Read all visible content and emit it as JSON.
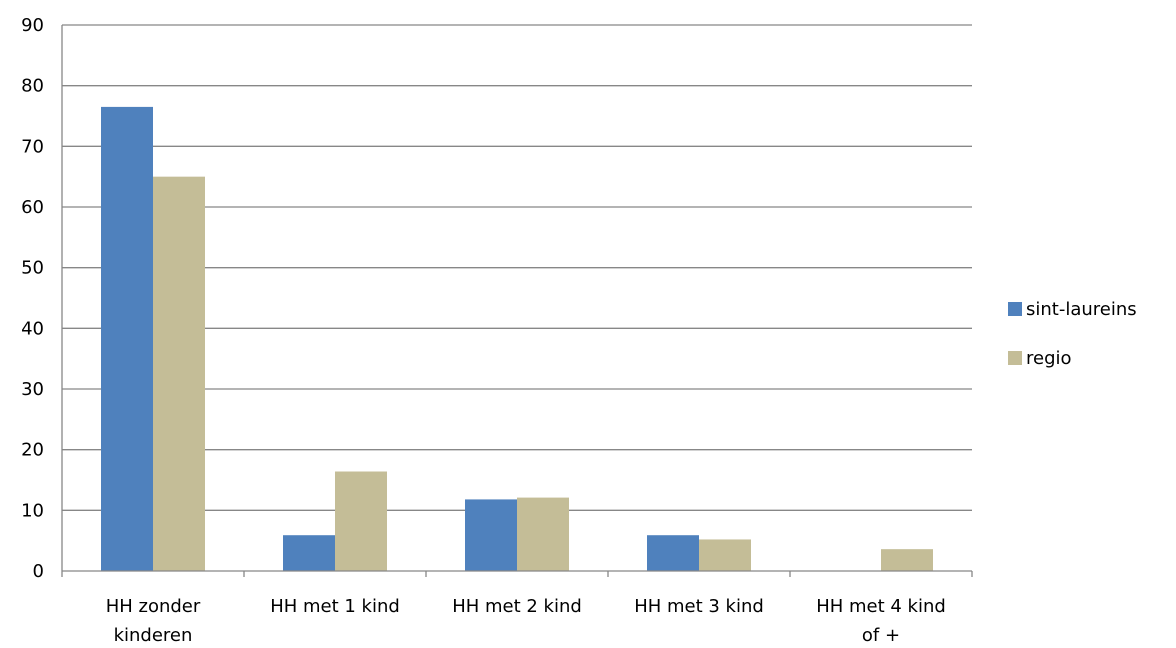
{
  "chart_data": {
    "type": "bar",
    "title": "",
    "xlabel": "",
    "ylabel": "",
    "categories": [
      [
        "HH zonder",
        "kinderen"
      ],
      [
        "HH met 1 kind"
      ],
      [
        "HH met 2 kind"
      ],
      [
        "HH met 3 kind"
      ],
      [
        "HH met 4 kind",
        "of +"
      ]
    ],
    "series": [
      {
        "name": "sint-laureins",
        "color": "#4F81BD",
        "values": [
          76.5,
          5.9,
          11.8,
          5.9,
          0
        ]
      },
      {
        "name": "regio",
        "color": "#C4BD97",
        "values": [
          65.0,
          16.4,
          12.1,
          5.2,
          3.6
        ]
      }
    ],
    "ylim": [
      0,
      90
    ],
    "yticks": [
      "0",
      "10",
      "20",
      "30",
      "40",
      "50",
      "60",
      "70",
      "80",
      "90"
    ],
    "grid": true,
    "legend_position": "right"
  }
}
